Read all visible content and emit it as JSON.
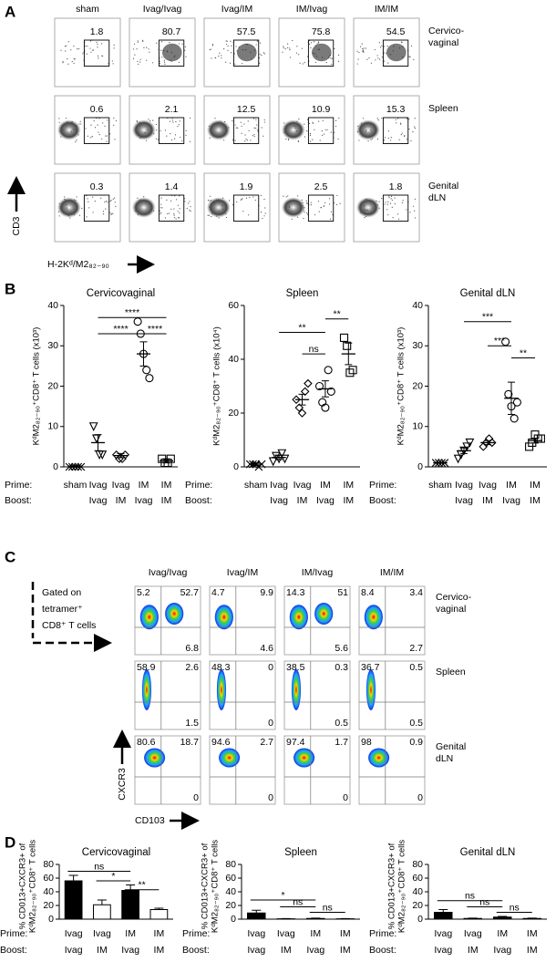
{
  "panel_labels": [
    "A",
    "B",
    "C",
    "D"
  ],
  "panel_a": {
    "columns": [
      "sham",
      "Ivag/Ivag",
      "Ivag/IM",
      "IM/Ivag",
      "IM/IM"
    ],
    "rows": [
      {
        "label": [
          "Cervico-",
          "vaginal"
        ],
        "values": [
          1.8,
          80.7,
          57.5,
          75.8,
          54.5
        ]
      },
      {
        "label": [
          "Spleen"
        ],
        "values": [
          0.6,
          2.1,
          12.5,
          10.9,
          15.3
        ]
      },
      {
        "label": [
          "Genital",
          "dLN"
        ],
        "values": [
          0.3,
          1.4,
          1.9,
          2.5,
          1.8
        ]
      }
    ],
    "y_axis": "CD3",
    "x_axis": "H-2Kᵈ/M2₈₂₋₉₀"
  },
  "chart_data": [
    {
      "type": "scatter",
      "title": "Cervicovaginal",
      "ylabel": "KᵈM2₈₂₋₉₀⁺CD8⁺ T cells (x10³)",
      "row_labels": [
        "Prime:",
        "Boost:"
      ],
      "prime": [
        "sham",
        "Ivag",
        "Ivag",
        "IM",
        "IM"
      ],
      "boost": [
        null,
        "Ivag",
        "IM",
        "Ivag",
        "IM"
      ],
      "markers": [
        "x",
        "triangle",
        "diamond",
        "circle",
        "square"
      ],
      "groups": [
        [
          0,
          0,
          0,
          0,
          0
        ],
        [
          10,
          7,
          3,
          3
        ],
        [
          3,
          2,
          2,
          3
        ],
        [
          36,
          33,
          28,
          24,
          22
        ],
        [
          2,
          1,
          1,
          2
        ]
      ],
      "means": [
        0.2,
        6,
        2.8,
        28,
        1.5
      ],
      "errors": [
        0.1,
        2,
        0.5,
        3,
        0.5
      ],
      "ylim": [
        0,
        40
      ],
      "yticks": [
        0,
        10,
        20,
        30,
        40
      ],
      "comparisons": [
        {
          "from": 1,
          "to": 4,
          "label": "****",
          "y": 37
        },
        {
          "from": 1,
          "to": 3,
          "label": "****",
          "y": 33
        },
        {
          "from": 3,
          "to": 4,
          "label": "****",
          "y": 33
        }
      ]
    },
    {
      "type": "scatter",
      "title": "Spleen",
      "ylabel": "KᵈM2₈₂₋₉₀⁺CD8⁺ T cells (x10⁴)",
      "row_labels": [
        "Prime:",
        "Boost:"
      ],
      "prime": [
        "sham",
        "Ivag",
        "Ivag",
        "IM",
        "IM"
      ],
      "boost": [
        null,
        "Ivag",
        "IM",
        "Ivag",
        "IM"
      ],
      "markers": [
        "x",
        "triangle",
        "diamond",
        "circle",
        "square"
      ],
      "groups": [
        [
          1,
          1,
          1,
          0,
          1
        ],
        [
          2,
          4,
          3,
          5,
          3
        ],
        [
          25,
          22,
          20,
          28,
          31
        ],
        [
          30,
          24,
          22,
          36,
          28
        ],
        [
          48,
          45,
          35,
          36
        ]
      ],
      "means": [
        1,
        3.5,
        25,
        29,
        42
      ],
      "errors": [
        0.5,
        0.8,
        2,
        3,
        4
      ],
      "ylim": [
        0,
        60
      ],
      "yticks": [
        0,
        20,
        40,
        60
      ],
      "comparisons": [
        {
          "from": 1,
          "to": 3,
          "label": "**",
          "y": 50
        },
        {
          "from": 2,
          "to": 3,
          "label": "ns",
          "y": 42
        },
        {
          "from": 3,
          "to": 4,
          "label": "**",
          "y": 55
        }
      ]
    },
    {
      "type": "scatter",
      "title": "Genital dLN",
      "ylabel": "KᵈM2₈₂₋₉₀⁺CD8⁺ T cells (x10³)",
      "row_labels": [
        "Prime:",
        "Boost:"
      ],
      "prime": [
        "sham",
        "Ivag",
        "Ivag",
        "IM",
        "IM"
      ],
      "boost": [
        null,
        "Ivag",
        "IM",
        "Ivag",
        "IM"
      ],
      "markers": [
        "x",
        "triangle",
        "diamond",
        "circle",
        "square"
      ],
      "groups": [
        [
          1,
          1,
          1,
          1
        ],
        [
          2,
          3,
          4,
          5,
          6
        ],
        [
          5,
          6,
          7,
          6
        ],
        [
          31,
          18,
          15,
          12,
          16
        ],
        [
          5,
          6,
          8,
          7,
          7
        ]
      ],
      "means": [
        1,
        4,
        6,
        17,
        6.5
      ],
      "errors": [
        0.1,
        0.7,
        0.5,
        4,
        0.6
      ],
      "ylim": [
        0,
        40
      ],
      "yticks": [
        0,
        10,
        20,
        30,
        40
      ],
      "comparisons": [
        {
          "from": 1,
          "to": 3,
          "label": "***",
          "y": 36
        },
        {
          "from": 2,
          "to": 3,
          "label": "***",
          "y": 30
        },
        {
          "from": 3,
          "to": 4,
          "label": "**",
          "y": 27
        }
      ]
    },
    {
      "type": "bar",
      "title": "Cervicovaginal",
      "ylabel": [
        "% CD013+CXCR3+ of",
        "KᵈM2₈₂₋₉₀⁺CD8⁺ T cells"
      ],
      "row_labels": [
        "Prime:",
        "Boost:"
      ],
      "prime": [
        "Ivag",
        "Ivag",
        "IM",
        "IM"
      ],
      "boost": [
        "Ivag",
        "IM",
        "Ivag",
        "IM"
      ],
      "colors": [
        "#000000",
        "#ffffff",
        "#000000",
        "#ffffff"
      ],
      "values": [
        56,
        21,
        42,
        14
      ],
      "errors": [
        8,
        7,
        8,
        2
      ],
      "ylim": [
        0,
        80
      ],
      "yticks": [
        0,
        20,
        40,
        60,
        80
      ],
      "comparisons": [
        {
          "from": 0,
          "to": 2,
          "label": "ns",
          "y": 70
        },
        {
          "from": 1,
          "to": 2,
          "label": "*",
          "y": 56
        },
        {
          "from": 2,
          "to": 3,
          "label": "**",
          "y": 43
        }
      ]
    },
    {
      "type": "bar",
      "title": "Spleen",
      "ylabel": [
        "% CD013+CXCR3+ of",
        "KᵈM2₈₂₋₉₀⁺CD8⁺ T cells"
      ],
      "row_labels": [
        "Prime:",
        "Boost:"
      ],
      "prime": [
        "Ivag",
        "Ivag",
        "IM",
        "IM"
      ],
      "boost": [
        "Ivag",
        "IM",
        "Ivag",
        "IM"
      ],
      "colors": [
        "#000000",
        "#ffffff",
        "#000000",
        "#ffffff"
      ],
      "values": [
        9,
        0.5,
        1,
        0.5
      ],
      "errors": [
        4,
        0.3,
        0.5,
        0.3
      ],
      "ylim": [
        0,
        80
      ],
      "yticks": [
        0,
        20,
        40,
        60,
        80
      ],
      "comparisons": [
        {
          "from": 0,
          "to": 2,
          "label": "*",
          "y": 28
        },
        {
          "from": 1,
          "to": 2,
          "label": "ns",
          "y": 18
        },
        {
          "from": 2,
          "to": 3,
          "label": "ns",
          "y": 10
        }
      ]
    },
    {
      "type": "bar",
      "title": "Genital dLN",
      "ylabel": [
        "% CD013+CXCR3+ of",
        "KᵈM2₈₂₋₉₀⁺CD8⁺ T cells"
      ],
      "row_labels": [
        "Prime:",
        "Boost:"
      ],
      "prime": [
        "Ivag",
        "Ivag",
        "IM",
        "IM"
      ],
      "boost": [
        "Ivag",
        "IM",
        "Ivag",
        "IM"
      ],
      "colors": [
        "#000000",
        "#ffffff",
        "#000000",
        "#ffffff"
      ],
      "values": [
        10,
        1,
        3,
        1
      ],
      "errors": [
        4,
        0.5,
        1,
        0.5
      ],
      "ylim": [
        0,
        80
      ],
      "yticks": [
        0,
        20,
        40,
        60,
        80
      ],
      "comparisons": [
        {
          "from": 0,
          "to": 2,
          "label": "ns",
          "y": 27
        },
        {
          "from": 1,
          "to": 2,
          "label": "ns",
          "y": 18
        },
        {
          "from": 2,
          "to": 3,
          "label": "ns",
          "y": 10
        }
      ]
    }
  ],
  "panel_c": {
    "columns": [
      "Ivag/Ivag",
      "Ivag/IM",
      "IM/Ivag",
      "IM/IM"
    ],
    "rows": [
      {
        "label": [
          "Cervico-",
          "vaginal"
        ],
        "cells": [
          [
            5.2,
            52.7,
            6.8
          ],
          [
            4.7,
            9.9,
            4.6
          ],
          [
            14.3,
            51,
            5.6
          ],
          [
            8.4,
            3.4,
            2.7
          ]
        ]
      },
      {
        "label": [
          "Spleen"
        ],
        "cells": [
          [
            58.9,
            2.6,
            1.5
          ],
          [
            48.3,
            0,
            0
          ],
          [
            38.5,
            0.3,
            0.5
          ],
          [
            36.7,
            0.5,
            0.5
          ]
        ]
      },
      {
        "label": [
          "Genital",
          "dLN"
        ],
        "cells": [
          [
            80.6,
            18.7,
            0
          ],
          [
            94.6,
            2.7,
            0
          ],
          [
            97.4,
            1.7,
            0
          ],
          [
            98,
            0.9,
            0
          ]
        ]
      }
    ],
    "gate_label": [
      "Gated on",
      "tetramer⁺",
      "CD8⁺ T cells"
    ],
    "y_axis": "CXCR3",
    "x_axis": "CD103"
  }
}
